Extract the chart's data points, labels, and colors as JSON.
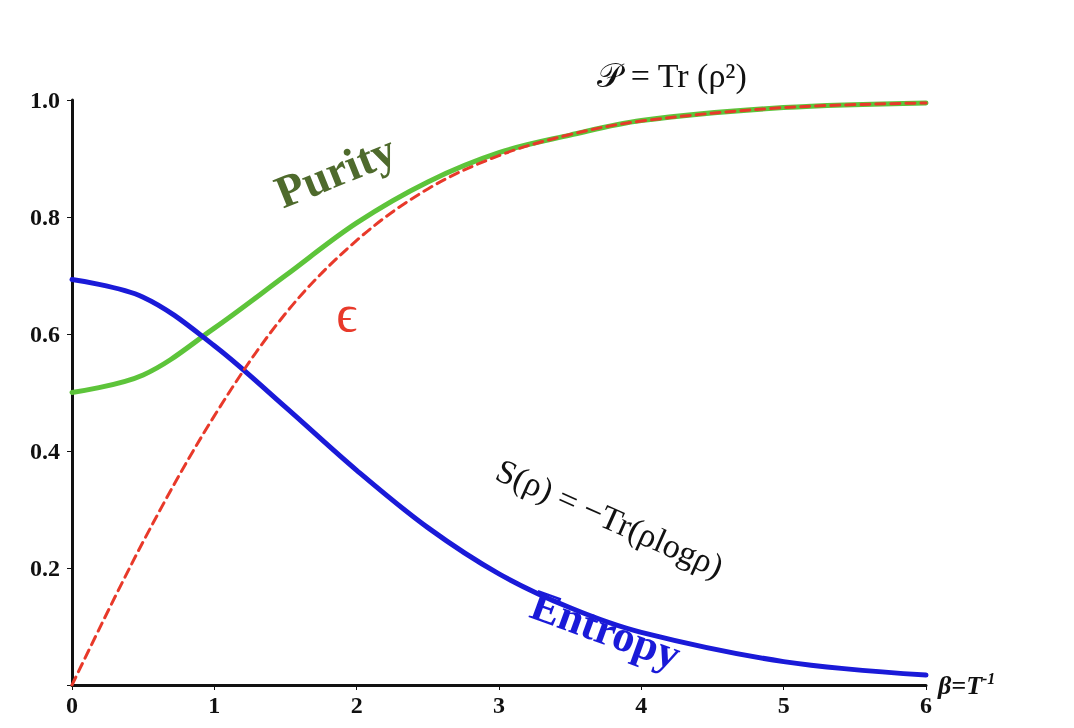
{
  "chart_data": {
    "type": "line",
    "xlabel": "β=T$^{-1}$",
    "x": [
      0,
      0.5,
      1,
      1.5,
      2,
      2.5,
      3,
      3.5,
      4,
      5,
      6
    ],
    "series": [
      {
        "name": "Purity",
        "color": "#5dc43a",
        "values": [
          0.5,
          0.53,
          0.61,
          0.7,
          0.79,
          0.86,
          0.91,
          0.94,
          0.965,
          0.987,
          0.995
        ]
      },
      {
        "name": "Entropy",
        "color": "#1a1ad8",
        "values": [
          0.693,
          0.663,
          0.58,
          0.475,
          0.367,
          0.269,
          0.19,
          0.132,
          0.09,
          0.04,
          0.017
        ]
      },
      {
        "name": "ϵ",
        "color": "#e8392a",
        "line_style": "dashed",
        "values": [
          0,
          0.245,
          0.46,
          0.635,
          0.76,
          0.848,
          0.905,
          0.941,
          0.964,
          0.987,
          0.995
        ]
      }
    ],
    "annotations": [
      "𝒫 = Tr (ρ²)",
      "S(ρ) = −Tr(ρlogρ)"
    ],
    "xlim": [
      0,
      6
    ],
    "ylim": [
      0,
      1
    ],
    "xticks": [
      0,
      1,
      2,
      3,
      4,
      5,
      6
    ],
    "yticks": [
      {
        "value": 0,
        "label": null
      },
      0.2,
      0.4,
      0.6,
      0.8,
      {
        "value": 1,
        "label": "1.0"
      }
    ],
    "grid": false,
    "legend": false,
    "marker": "none",
    "line_style": "solid"
  }
}
